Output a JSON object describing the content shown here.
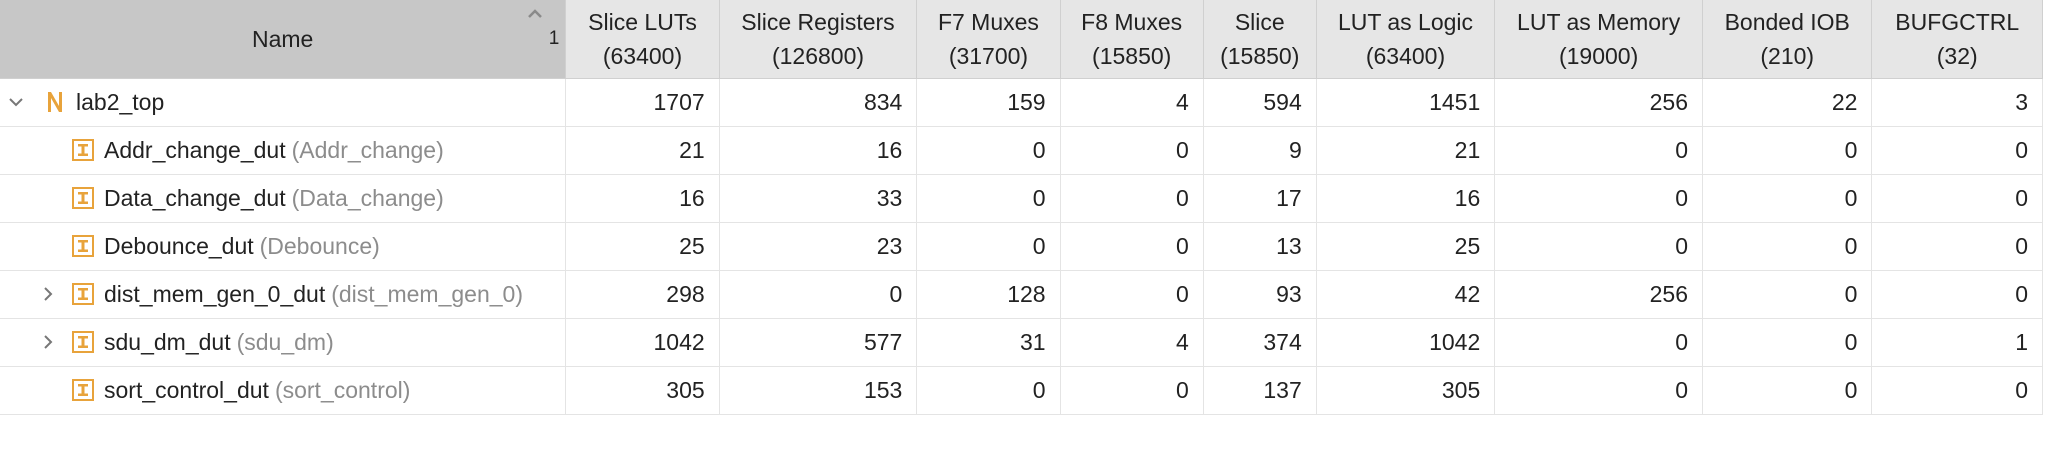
{
  "header": {
    "name": "Name",
    "sort_order": "1",
    "columns": [
      {
        "title": "Slice LUTs",
        "capacity": "(63400)"
      },
      {
        "title": "Slice Registers",
        "capacity": "(126800)"
      },
      {
        "title": "F7 Muxes",
        "capacity": "(31700)"
      },
      {
        "title": "F8 Muxes",
        "capacity": "(15850)"
      },
      {
        "title": "Slice",
        "capacity": "(15850)"
      },
      {
        "title": "LUT as Logic",
        "capacity": "(63400)"
      },
      {
        "title": "LUT as Memory",
        "capacity": "(19000)"
      },
      {
        "title": "Bonded IOB",
        "capacity": "(210)"
      },
      {
        "title": "BUFGCTRL",
        "capacity": "(32)"
      }
    ]
  },
  "rows": [
    {
      "instance": "lab2_top",
      "module": "",
      "values": [
        "1707",
        "834",
        "159",
        "4",
        "594",
        "1451",
        "256",
        "22",
        "3"
      ]
    },
    {
      "instance": "Addr_change_dut",
      "module": "(Addr_change)",
      "values": [
        "21",
        "16",
        "0",
        "0",
        "9",
        "21",
        "0",
        "0",
        "0"
      ]
    },
    {
      "instance": "Data_change_dut",
      "module": "(Data_change)",
      "values": [
        "16",
        "33",
        "0",
        "0",
        "17",
        "16",
        "0",
        "0",
        "0"
      ]
    },
    {
      "instance": "Debounce_dut",
      "module": "(Debounce)",
      "values": [
        "25",
        "23",
        "0",
        "0",
        "13",
        "25",
        "0",
        "0",
        "0"
      ]
    },
    {
      "instance": "dist_mem_gen_0_dut",
      "module": "(dist_mem_gen_0)",
      "values": [
        "298",
        "0",
        "128",
        "0",
        "93",
        "42",
        "256",
        "0",
        "0"
      ]
    },
    {
      "instance": "sdu_dm_dut",
      "module": "(sdu_dm)",
      "values": [
        "1042",
        "577",
        "31",
        "4",
        "374",
        "1042",
        "0",
        "0",
        "1"
      ]
    },
    {
      "instance": "sort_control_dut",
      "module": "(sort_control)",
      "values": [
        "305",
        "153",
        "0",
        "0",
        "137",
        "305",
        "0",
        "0",
        "0"
      ]
    }
  ],
  "colors": {
    "header_bg": "#e6e6e6",
    "sorted_header_bg": "#c7c7c7",
    "module_icon": "#e8a33b"
  }
}
